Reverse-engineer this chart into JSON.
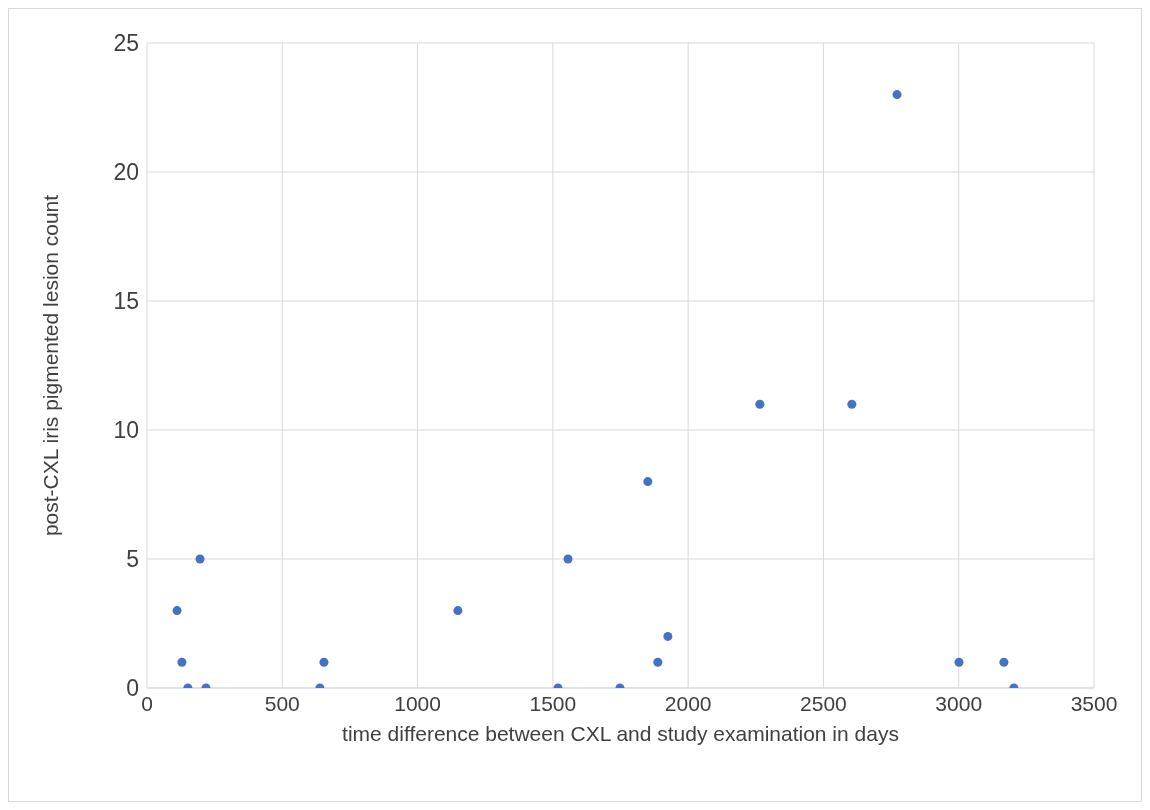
{
  "chart_data": {
    "type": "scatter",
    "xlabel": "time difference between CXL and study examination in days",
    "ylabel": "post-CXL iris pigmented lesion count",
    "x": [
      111,
      129,
      151,
      196,
      218,
      639,
      654,
      1149,
      1519,
      1556,
      1748,
      1851,
      1888,
      1925,
      2265,
      2605,
      2772,
      3001,
      3167,
      3204
    ],
    "series": [
      {
        "color": "#4472c4",
        "values": [
          3,
          1,
          0,
          5,
          0,
          0,
          1,
          3,
          0,
          5,
          0,
          8,
          1,
          2,
          11,
          11,
          23,
          1,
          1,
          0
        ]
      }
    ],
    "xlim": [
      0,
      3500
    ],
    "xticks": [
      0,
      500,
      1000,
      1500,
      2000,
      2500,
      3000,
      3500
    ],
    "ylim": [
      0,
      25
    ],
    "yticks": [
      0,
      5,
      10,
      15,
      20,
      25
    ],
    "grid": true,
    "marker": "circle"
  }
}
